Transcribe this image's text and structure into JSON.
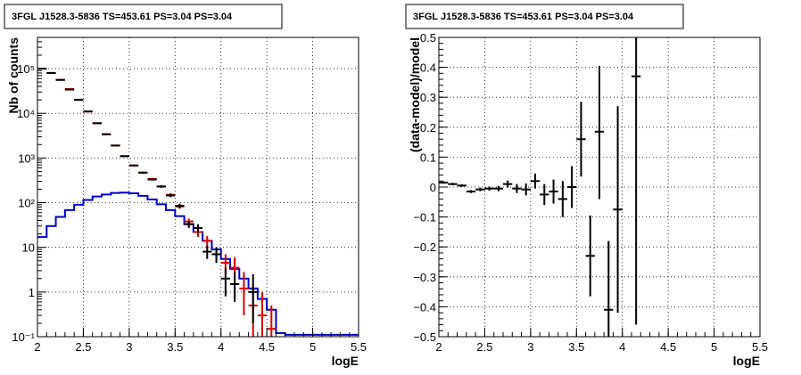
{
  "chart_data": [
    {
      "type": "line",
      "title": "3FGL J1528.3-5836 TS=453.61 PS=3.04 PS=3.04",
      "xlabel": "logE",
      "ylabel": "Nb of counts",
      "xlim": [
        2,
        5.5
      ],
      "ylim": [
        0.1,
        500000
      ],
      "yscale": "log",
      "grid": true,
      "x_ticks": [
        "2",
        "2.5",
        "3",
        "3.5",
        "4",
        "4.5",
        "5",
        "5.5"
      ],
      "y_ticks": [
        "10⁻¹",
        "1",
        "10",
        "10²",
        "10³",
        "10⁴",
        "10⁵"
      ],
      "y_tick_values": [
        0.1,
        1,
        10,
        100,
        1000,
        10000,
        100000
      ],
      "bin_edges": [
        2.0,
        2.1,
        2.2,
        2.3,
        2.4,
        2.5,
        2.6,
        2.7,
        2.8,
        2.9,
        3.0,
        3.1,
        3.2,
        3.3,
        3.4,
        3.5,
        3.6,
        3.7,
        3.8,
        3.9,
        4.0,
        4.1,
        4.2,
        4.3,
        4.4,
        4.5,
        4.6,
        4.7,
        4.8,
        4.9,
        5.0,
        5.1,
        5.2,
        5.3,
        5.4,
        5.5
      ],
      "series": [
        {
          "color": "#0000cc",
          "style": "histogram",
          "values": [
            17,
            30,
            48,
            68,
            90,
            115,
            137,
            152,
            165,
            168,
            162,
            142,
            118,
            92,
            68,
            50,
            33,
            22,
            14,
            9,
            5.5,
            3.3,
            2.0,
            1.2,
            0.7,
            0.4,
            0.12,
            0.11,
            0.11,
            0.11,
            0.11,
            0.11,
            0.11,
            0.11,
            0.11
          ]
        },
        {
          "color": "#dd0000",
          "style": "errorbar",
          "points": [
            {
              "x": 2.05,
              "y": 100000,
              "lo": 99000,
              "hi": 101000
            },
            {
              "x": 2.15,
              "y": 80000,
              "lo": 79000,
              "hi": 81000
            },
            {
              "x": 2.25,
              "y": 56000,
              "lo": 55300,
              "hi": 56700
            },
            {
              "x": 2.35,
              "y": 35000,
              "lo": 34500,
              "hi": 35500
            },
            {
              "x": 2.45,
              "y": 20000,
              "lo": 19700,
              "hi": 20300
            },
            {
              "x": 2.55,
              "y": 11000,
              "lo": 10800,
              "hi": 11200
            },
            {
              "x": 2.65,
              "y": 6000,
              "lo": 5900,
              "hi": 6100
            },
            {
              "x": 2.75,
              "y": 3400,
              "lo": 3330,
              "hi": 3470
            },
            {
              "x": 2.85,
              "y": 1900,
              "lo": 1850,
              "hi": 1950
            },
            {
              "x": 2.95,
              "y": 1100,
              "lo": 1070,
              "hi": 1130
            },
            {
              "x": 3.05,
              "y": 680,
              "lo": 650,
              "hi": 710
            },
            {
              "x": 3.15,
              "y": 470,
              "lo": 448,
              "hi": 492
            },
            {
              "x": 3.25,
              "y": 340,
              "lo": 322,
              "hi": 358
            },
            {
              "x": 3.35,
              "y": 230,
              "lo": 215,
              "hi": 245
            },
            {
              "x": 3.45,
              "y": 150,
              "lo": 138,
              "hi": 162
            },
            {
              "x": 3.55,
              "y": 82,
              "lo": 73,
              "hi": 91
            },
            {
              "x": 3.65,
              "y": 38,
              "lo": 32,
              "hi": 44
            },
            {
              "x": 3.75,
              "y": 22,
              "lo": 17,
              "hi": 27
            },
            {
              "x": 3.85,
              "y": 14,
              "lo": 10,
              "hi": 18
            },
            {
              "x": 3.95,
              "y": 7,
              "lo": 4.5,
              "hi": 10
            },
            {
              "x": 4.05,
              "y": 4.5,
              "lo": 2.5,
              "hi": 7
            },
            {
              "x": 4.15,
              "y": 3.5,
              "lo": 1.8,
              "hi": 6
            },
            {
              "x": 4.25,
              "y": 1.2,
              "lo": 0.3,
              "hi": 2.8
            },
            {
              "x": 4.35,
              "y": 0.5,
              "lo": 0.1,
              "hi": 1.5
            },
            {
              "x": 4.45,
              "y": 0.3,
              "lo": 0.1,
              "hi": 1
            },
            {
              "x": 4.55,
              "y": 0.15,
              "lo": 0.1,
              "hi": 0.5
            }
          ]
        },
        {
          "color": "#000000",
          "style": "errorbar",
          "points": [
            {
              "x": 2.05,
              "y": 100000,
              "lo": 99000,
              "hi": 101000
            },
            {
              "x": 2.15,
              "y": 80000,
              "lo": 79000,
              "hi": 81000
            },
            {
              "x": 2.25,
              "y": 56000,
              "lo": 55300,
              "hi": 56700
            },
            {
              "x": 2.35,
              "y": 34000,
              "lo": 33500,
              "hi": 34500
            },
            {
              "x": 2.45,
              "y": 20000,
              "lo": 19700,
              "hi": 20300
            },
            {
              "x": 2.55,
              "y": 11000,
              "lo": 10800,
              "hi": 11200
            },
            {
              "x": 2.65,
              "y": 6000,
              "lo": 5900,
              "hi": 6100
            },
            {
              "x": 2.75,
              "y": 3400,
              "lo": 3330,
              "hi": 3470
            },
            {
              "x": 2.85,
              "y": 1900,
              "lo": 1850,
              "hi": 1950
            },
            {
              "x": 2.95,
              "y": 1100,
              "lo": 1070,
              "hi": 1130
            },
            {
              "x": 3.05,
              "y": 680,
              "lo": 650,
              "hi": 710
            },
            {
              "x": 3.15,
              "y": 470,
              "lo": 448,
              "hi": 492
            },
            {
              "x": 3.25,
              "y": 330,
              "lo": 312,
              "hi": 348
            },
            {
              "x": 3.35,
              "y": 230,
              "lo": 215,
              "hi": 245
            },
            {
              "x": 3.45,
              "y": 145,
              "lo": 133,
              "hi": 157
            },
            {
              "x": 3.55,
              "y": 85,
              "lo": 75,
              "hi": 95
            },
            {
              "x": 3.65,
              "y": 33,
              "lo": 27,
              "hi": 39
            },
            {
              "x": 3.75,
              "y": 27,
              "lo": 21,
              "hi": 33
            },
            {
              "x": 3.85,
              "y": 8,
              "lo": 5.5,
              "hi": 11
            },
            {
              "x": 3.95,
              "y": 7,
              "lo": 4.5,
              "hi": 10
            },
            {
              "x": 4.05,
              "y": 2,
              "lo": 0.8,
              "hi": 3.5
            },
            {
              "x": 4.15,
              "y": 1.5,
              "lo": 0.6,
              "hi": 2.8
            },
            {
              "x": 4.35,
              "y": 1.0,
              "lo": 0.2,
              "hi": 2.5
            }
          ]
        }
      ]
    },
    {
      "type": "scatter",
      "title": "3FGL J1528.3-5836 TS=453.61 PS=3.04 PS=3.04",
      "xlabel": "logE",
      "ylabel": "(data-model)/model",
      "xlim": [
        2,
        5.5
      ],
      "ylim": [
        -0.5,
        0.5
      ],
      "grid": true,
      "x_ticks": [
        "2",
        "2.5",
        "3",
        "3.5",
        "4",
        "4.5",
        "5",
        "5.5"
      ],
      "y_ticks": [
        "−0.5",
        "−0.4",
        "−0.3",
        "−0.2",
        "−0.1",
        "0",
        "0.1",
        "0.2",
        "0.3",
        "0.4",
        "0.5"
      ],
      "y_tick_values": [
        -0.5,
        -0.4,
        -0.3,
        -0.2,
        -0.1,
        0,
        0.1,
        0.2,
        0.3,
        0.4,
        0.5
      ],
      "series": [
        {
          "color": "#000000",
          "style": "errorbar",
          "points": [
            {
              "x": 2.05,
              "y": 0.015,
              "lo": 0.011,
              "hi": 0.019
            },
            {
              "x": 2.15,
              "y": 0.01,
              "lo": 0.006,
              "hi": 0.014
            },
            {
              "x": 2.25,
              "y": 0.005,
              "lo": 0.001,
              "hi": 0.009
            },
            {
              "x": 2.35,
              "y": -0.015,
              "lo": -0.02,
              "hi": -0.01
            },
            {
              "x": 2.45,
              "y": -0.008,
              "lo": -0.014,
              "hi": -0.002
            },
            {
              "x": 2.55,
              "y": -0.005,
              "lo": -0.012,
              "hi": 0.002
            },
            {
              "x": 2.65,
              "y": -0.005,
              "lo": -0.014,
              "hi": 0.004
            },
            {
              "x": 2.75,
              "y": 0.01,
              "lo": -0.002,
              "hi": 0.022
            },
            {
              "x": 2.85,
              "y": -0.005,
              "lo": -0.02,
              "hi": 0.01
            },
            {
              "x": 2.95,
              "y": -0.008,
              "lo": -0.028,
              "hi": 0.012
            },
            {
              "x": 3.05,
              "y": 0.02,
              "lo": -0.005,
              "hi": 0.045
            },
            {
              "x": 3.15,
              "y": -0.025,
              "lo": -0.06,
              "hi": 0.01
            },
            {
              "x": 3.25,
              "y": -0.015,
              "lo": -0.055,
              "hi": 0.025
            },
            {
              "x": 3.35,
              "y": -0.04,
              "lo": -0.1,
              "hi": 0.02
            },
            {
              "x": 3.45,
              "y": 0.0,
              "lo": -0.07,
              "hi": 0.07
            },
            {
              "x": 3.55,
              "y": 0.16,
              "lo": 0.035,
              "hi": 0.285
            },
            {
              "x": 3.65,
              "y": -0.23,
              "lo": -0.365,
              "hi": -0.095
            },
            {
              "x": 3.75,
              "y": 0.185,
              "lo": -0.04,
              "hi": 0.405
            },
            {
              "x": 3.85,
              "y": -0.41,
              "lo": -0.5,
              "hi": -0.18
            },
            {
              "x": 3.95,
              "y": -0.075,
              "lo": -0.42,
              "hi": 0.27
            },
            {
              "x": 4.15,
              "y": 0.37,
              "lo": -0.46,
              "hi": 0.5
            }
          ]
        }
      ]
    }
  ]
}
